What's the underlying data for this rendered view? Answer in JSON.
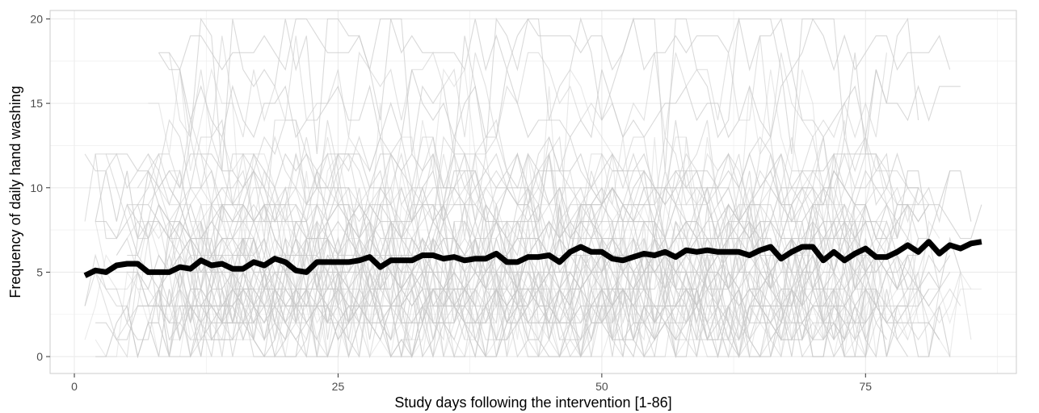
{
  "chart_data": {
    "type": "line",
    "title": "",
    "xlabel": "Study days following the intervention [1-86]",
    "ylabel": "Frequency of daily hand washing",
    "xlim": [
      -2.3,
      89.3
    ],
    "ylim": [
      -1,
      20.5
    ],
    "x_ticks": [
      0,
      25,
      50,
      75
    ],
    "x_tick_labels": [
      "0",
      "25",
      "50",
      "75"
    ],
    "y_ticks": [
      0,
      5,
      10,
      15,
      20
    ],
    "y_tick_labels": [
      "0",
      "5",
      "10",
      "15",
      "20"
    ],
    "grid": true,
    "legend": "none",
    "colors": {
      "mean_line": "#000000",
      "participant_lines": "#c8c8c8",
      "grid": "#ebebeb",
      "panel_border": "#cccccc"
    },
    "participant_lines": {
      "description_count": 60,
      "x": [
        1,
        86
      ],
      "value_range": [
        0,
        20
      ]
    },
    "series": [
      {
        "values": [
          4.8,
          5.1,
          5.0,
          5.4,
          5.5,
          5.5,
          5.0,
          5.0,
          5.0,
          5.3,
          5.2,
          5.7,
          5.4,
          5.5,
          5.2,
          5.2,
          5.6,
          5.4,
          5.8,
          5.6,
          5.1,
          5.0,
          5.6,
          5.6,
          5.6,
          5.6,
          5.7,
          5.9,
          5.3,
          5.7,
          5.7,
          5.7,
          6.0,
          6.0,
          5.8,
          5.9,
          5.7,
          5.8,
          5.8,
          6.1,
          5.6,
          5.6,
          5.9,
          5.9,
          6.0,
          5.6,
          6.2,
          6.5,
          6.2,
          6.2,
          5.8,
          5.7,
          5.9,
          6.1,
          6.0,
          6.2,
          5.9,
          6.3,
          6.2,
          6.3,
          6.2,
          6.2,
          6.2,
          6.0,
          6.3,
          6.5,
          5.8,
          6.2,
          6.5,
          6.5,
          5.7,
          6.2,
          5.7,
          6.1,
          6.4,
          5.9,
          5.9,
          6.2,
          6.6,
          6.2,
          6.8,
          6.1,
          6.6,
          6.4,
          6.7,
          6.8
        ]
      }
    ]
  }
}
